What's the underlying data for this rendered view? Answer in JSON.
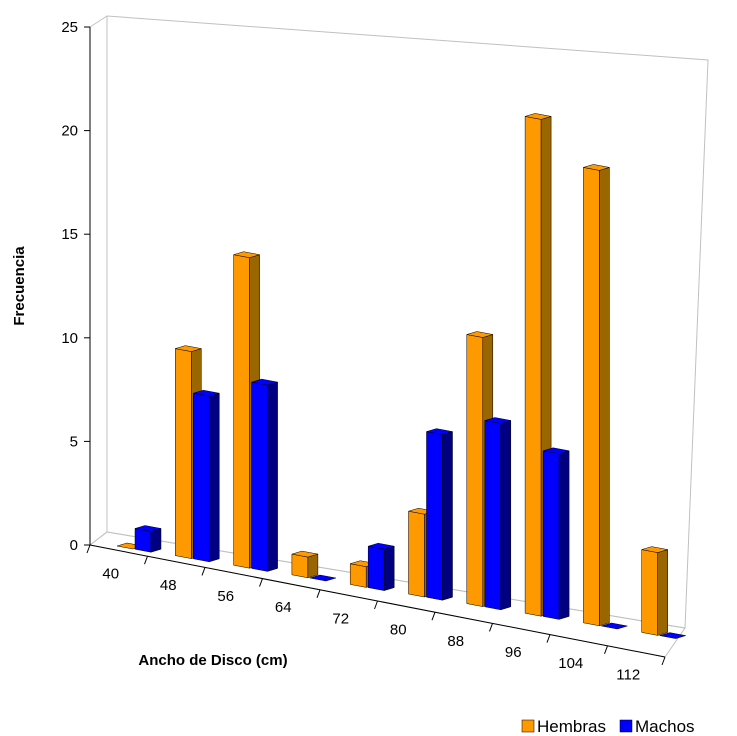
{
  "chart_data": {
    "type": "bar",
    "subtype": "3d-clustered-column",
    "xlabel": "Ancho de Disco (cm)",
    "ylabel": "Frecuencia",
    "ylim": [
      0,
      25
    ],
    "yticks": [
      "0",
      "5",
      "10",
      "15",
      "20",
      "25"
    ],
    "categories": [
      "40",
      "48",
      "56",
      "64",
      "72",
      "80",
      "88",
      "96",
      "104",
      "112"
    ],
    "legend_position": "bottom-right",
    "gridlines": false,
    "series": [
      {
        "name": "Hembras",
        "color": "#FF9900",
        "side_color": "#996600",
        "values": [
          0,
          10,
          15,
          1,
          1,
          4,
          13,
          24,
          22,
          4
        ]
      },
      {
        "name": "Machos",
        "color": "#0000FF",
        "side_color": "#000080",
        "values": [
          1,
          8,
          9,
          0,
          2,
          8,
          9,
          8,
          0,
          0
        ]
      }
    ]
  }
}
